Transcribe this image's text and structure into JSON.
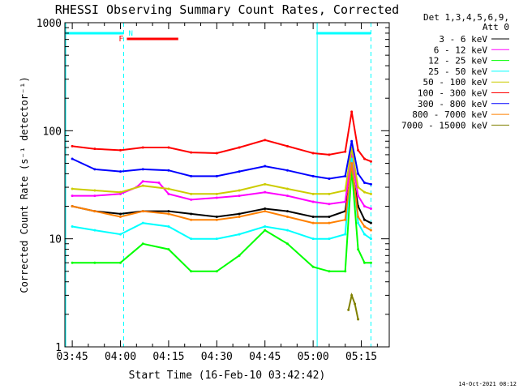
{
  "chart_data": {
    "type": "line",
    "title": "RHESSI Observing Summary Count Rates, Corrected",
    "xlabel": "Start Time (16-Feb-10 03:42:42)",
    "ylabel": "Corrected Count Rate (s⁻¹ detector⁻¹)",
    "ylim": [
      1,
      1000
    ],
    "yscale": "log",
    "xlim_minutes_after_0342_42": [
      0,
      101
    ],
    "x_ticks": [
      "03:45",
      "04:00",
      "04:15",
      "04:30",
      "04:45",
      "05:00",
      "05:15"
    ],
    "y_ticks": [
      "1",
      "10",
      "100",
      "1000"
    ],
    "legend_header": [
      "Det 1,3,4,5,6,9,",
      "Att 0"
    ],
    "legend_placement": "right, outside plot",
    "series": [
      {
        "name": "3 - 6 keV",
        "color": "#000000",
        "x": [
          "03:45",
          "03:52",
          "04:00",
          "04:07",
          "04:15",
          "04:22",
          "04:30",
          "04:37",
          "04:45",
          "04:52",
          "05:00",
          "05:05",
          "05:10",
          "05:12",
          "05:14",
          "05:16",
          "05:18"
        ],
        "values": [
          20,
          18,
          17,
          18,
          18,
          17,
          16,
          17,
          19,
          18,
          16,
          16,
          18,
          45,
          20,
          15,
          14
        ]
      },
      {
        "name": "6 - 12 keV",
        "color": "#ff00ff",
        "x": [
          "03:45",
          "03:52",
          "04:00",
          "04:05",
          "04:07",
          "04:12",
          "04:15",
          "04:22",
          "04:30",
          "04:37",
          "04:45",
          "04:52",
          "05:00",
          "05:05",
          "05:10",
          "05:12",
          "05:14",
          "05:16",
          "05:18"
        ],
        "values": [
          25,
          25,
          26,
          30,
          34,
          33,
          26,
          23,
          24,
          25,
          27,
          25,
          22,
          21,
          22,
          60,
          25,
          20,
          19
        ]
      },
      {
        "name": "12 - 25 keV",
        "color": "#00ff00",
        "x": [
          "03:45",
          "03:52",
          "04:00",
          "04:07",
          "04:15",
          "04:22",
          "04:30",
          "04:37",
          "04:45",
          "04:52",
          "05:00",
          "05:05",
          "05:10",
          "05:12",
          "05:14",
          "05:16",
          "05:18"
        ],
        "values": [
          6,
          6,
          6,
          9,
          8,
          5,
          5,
          7,
          12,
          9,
          5.5,
          5,
          5,
          45,
          8,
          6,
          6
        ]
      },
      {
        "name": "25 - 50 keV",
        "color": "#00ffff",
        "x": [
          "03:45",
          "03:52",
          "04:00",
          "04:07",
          "04:15",
          "04:22",
          "04:30",
          "04:37",
          "04:45",
          "04:52",
          "05:00",
          "05:05",
          "05:10",
          "05:12",
          "05:14",
          "05:16",
          "05:18"
        ],
        "values": [
          13,
          12,
          11,
          14,
          13,
          10,
          10,
          11,
          13,
          12,
          10,
          10,
          11,
          55,
          14,
          11,
          10
        ]
      },
      {
        "name": "50 - 100 keV",
        "color": "#cccc00",
        "x": [
          "03:45",
          "03:52",
          "04:00",
          "04:07",
          "04:15",
          "04:22",
          "04:30",
          "04:37",
          "04:45",
          "04:52",
          "05:00",
          "05:05",
          "05:10",
          "05:12",
          "05:14",
          "05:16",
          "05:18"
        ],
        "values": [
          29,
          28,
          27,
          31,
          29,
          26,
          26,
          28,
          32,
          29,
          26,
          26,
          28,
          70,
          30,
          27,
          26
        ]
      },
      {
        "name": "100 - 300 keV",
        "color": "#ff0000",
        "x": [
          "03:45",
          "03:52",
          "04:00",
          "04:07",
          "04:15",
          "04:22",
          "04:30",
          "04:37",
          "04:45",
          "04:52",
          "05:00",
          "05:05",
          "05:10",
          "05:12",
          "05:14",
          "05:16",
          "05:18"
        ],
        "values": [
          72,
          68,
          66,
          70,
          70,
          63,
          62,
          70,
          82,
          72,
          62,
          60,
          64,
          150,
          66,
          55,
          52
        ]
      },
      {
        "name": "300 - 800 keV",
        "color": "#0000ff",
        "x": [
          "03:45",
          "03:52",
          "04:00",
          "04:07",
          "04:15",
          "04:22",
          "04:30",
          "04:37",
          "04:45",
          "04:52",
          "05:00",
          "05:05",
          "05:10",
          "05:12",
          "05:14",
          "05:16",
          "05:18"
        ],
        "values": [
          55,
          44,
          42,
          44,
          43,
          38,
          38,
          42,
          47,
          43,
          38,
          36,
          38,
          80,
          40,
          33,
          32
        ]
      },
      {
        "name": "800 - 7000 keV",
        "color": "#ff8000",
        "x": [
          "03:45",
          "03:52",
          "04:00",
          "04:07",
          "04:15",
          "04:22",
          "04:30",
          "04:37",
          "04:45",
          "04:52",
          "05:00",
          "05:05",
          "05:10",
          "05:12",
          "05:14",
          "05:16",
          "05:18"
        ],
        "values": [
          20,
          18,
          16,
          18,
          17,
          15,
          15,
          16,
          18,
          16,
          14,
          14,
          15,
          50,
          16,
          13,
          12
        ]
      },
      {
        "name": "7000 - 15000 keV",
        "color": "#808000",
        "x": [
          "05:11",
          "05:12",
          "05:13",
          "05:14"
        ],
        "values": [
          2.2,
          3.0,
          2.5,
          1.8
        ]
      }
    ],
    "annotations": [
      {
        "label": "N",
        "color": "#00ffff"
      },
      {
        "label": "F",
        "color": "#ff0000"
      }
    ],
    "night_bars": [
      [
        "03:42:42",
        "04:01"
      ],
      [
        "05:01",
        "05:18"
      ]
    ],
    "flare_bar": [
      "04:02",
      "04:18"
    ],
    "timestamp": "14-Oct-2021 08:12"
  }
}
